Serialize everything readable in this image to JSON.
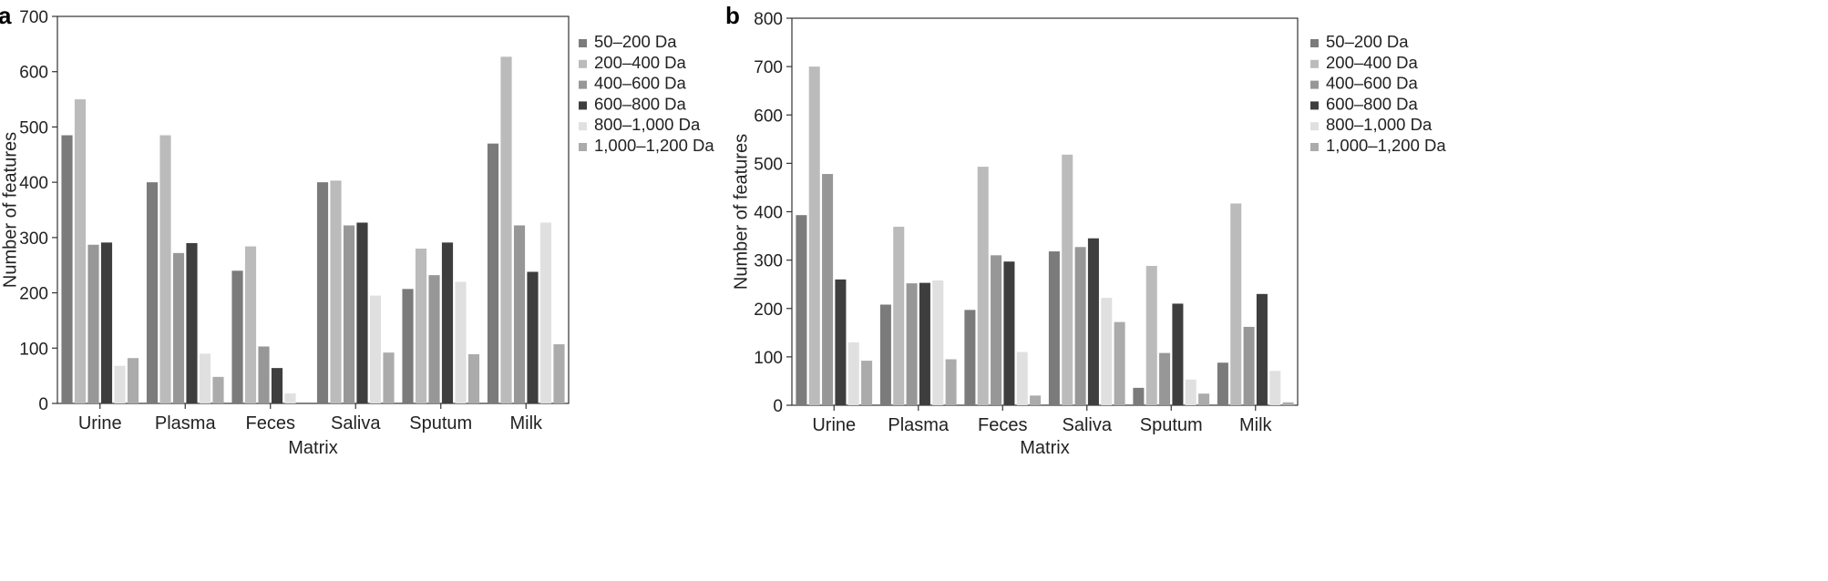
{
  "chart_data": [
    {
      "type": "bar",
      "panel_label": "a",
      "categories": [
        "Urine",
        "Plasma",
        "Feces",
        "Saliva",
        "Sputum",
        "Milk"
      ],
      "xlabel": "Matrix",
      "ylabel": "Number of features",
      "ylim": [
        0,
        700
      ],
      "yticks": [
        0,
        100,
        200,
        300,
        400,
        500,
        600,
        700
      ],
      "grid": false,
      "legend_position": "right",
      "series": [
        {
          "name": "50–200 Da",
          "color": "#7b7b7b",
          "values": [
            485,
            400,
            240,
            400,
            207,
            470
          ]
        },
        {
          "name": "200–400 Da",
          "color": "#bbbbbb",
          "values": [
            550,
            485,
            284,
            403,
            280,
            627
          ]
        },
        {
          "name": "400–600 Da",
          "color": "#979797",
          "values": [
            287,
            272,
            103,
            322,
            232,
            322
          ]
        },
        {
          "name": "600–800 Da",
          "color": "#3e3e3e",
          "values": [
            291,
            290,
            64,
            327,
            291,
            238
          ]
        },
        {
          "name": "800–1,000 Da",
          "color": "#e0e0e0",
          "values": [
            68,
            90,
            18,
            195,
            220,
            327
          ]
        },
        {
          "name": "1,000–1,200 Da",
          "color": "#ababab",
          "values": [
            82,
            48,
            0,
            92,
            89,
            107
          ]
        }
      ]
    },
    {
      "type": "bar",
      "panel_label": "b",
      "categories": [
        "Urine",
        "Plasma",
        "Feces",
        "Saliva",
        "Sputum",
        "Milk"
      ],
      "xlabel": "Matrix",
      "ylabel": "Number of features",
      "ylim": [
        0,
        800
      ],
      "yticks": [
        0,
        100,
        200,
        300,
        400,
        500,
        600,
        700,
        800
      ],
      "grid": false,
      "legend_position": "right",
      "series": [
        {
          "name": "50–200 Da",
          "color": "#7b7b7b",
          "values": [
            393,
            208,
            197,
            318,
            36,
            88
          ]
        },
        {
          "name": "200–400 Da",
          "color": "#bbbbbb",
          "values": [
            700,
            369,
            493,
            518,
            288,
            417
          ]
        },
        {
          "name": "400–600 Da",
          "color": "#979797",
          "values": [
            478,
            252,
            310,
            327,
            108,
            162
          ]
        },
        {
          "name": "600–800 Da",
          "color": "#3e3e3e",
          "values": [
            260,
            253,
            297,
            345,
            210,
            230
          ]
        },
        {
          "name": "800–1,000 Da",
          "color": "#e0e0e0",
          "values": [
            130,
            258,
            110,
            222,
            53,
            71
          ]
        },
        {
          "name": "1,000–1,200 Da",
          "color": "#ababab",
          "values": [
            92,
            95,
            20,
            172,
            24,
            6
          ]
        }
      ]
    }
  ]
}
